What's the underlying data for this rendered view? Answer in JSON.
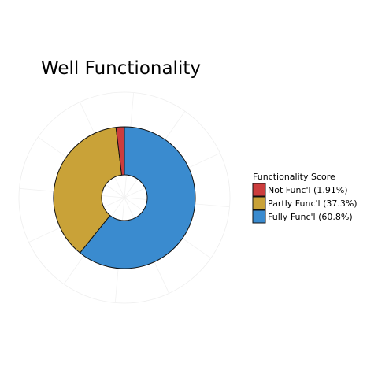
{
  "chart_data": {
    "type": "pie",
    "title": "Well Functionality",
    "legend_title": "Functionality Score",
    "legend_placement": "right",
    "donut": true,
    "start": "top",
    "direction": "clockwise",
    "slices": [
      {
        "label": "Not Func'l (1.91%)",
        "value": 1.91,
        "color": "#cc3d3d"
      },
      {
        "label": "Partly Func'l (37.3%)",
        "value": 37.3,
        "color": "#c9a238"
      },
      {
        "label": "Fully Func'l (60.8%)",
        "value": 60.8,
        "color": "#3a8bcf"
      }
    ],
    "grid": true
  }
}
